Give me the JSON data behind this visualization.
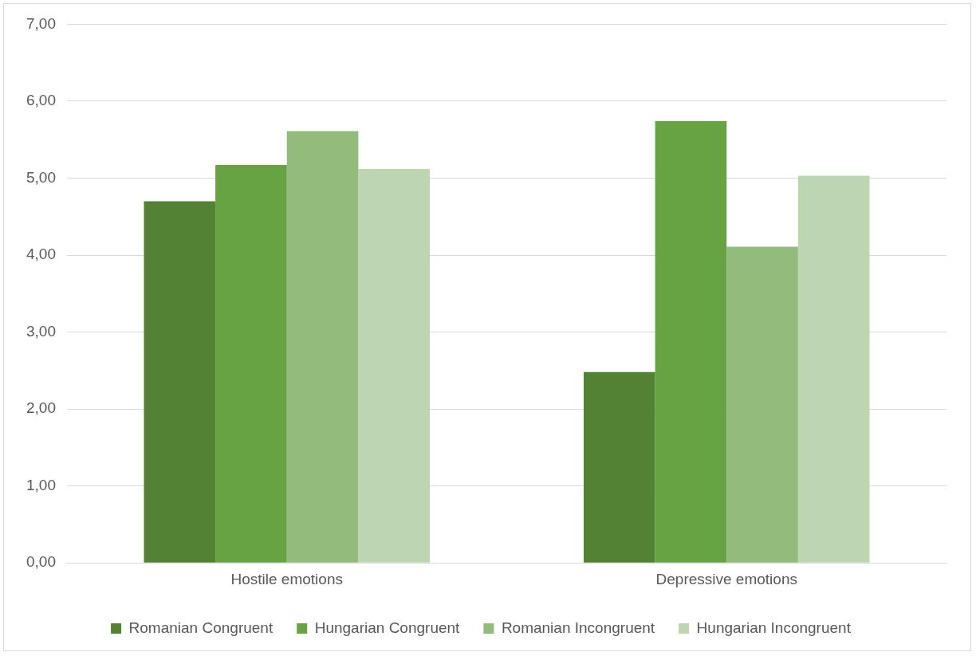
{
  "chart_data": {
    "type": "bar",
    "categories": [
      "Hostile emotions",
      "Depressive emotions"
    ],
    "series": [
      {
        "name": "Romanian Congruent",
        "color": "#548235",
        "values": [
          4.7,
          2.48
        ]
      },
      {
        "name": "Hungarian Congruent",
        "color": "#68a343",
        "values": [
          5.17,
          5.74
        ]
      },
      {
        "name": "Romanian Incongruent",
        "color": "#93bc7c",
        "values": [
          5.61,
          4.11
        ]
      },
      {
        "name": "Hungarian Incongruent",
        "color": "#bed5b2",
        "values": [
          5.12,
          5.03
        ]
      }
    ],
    "ylim": [
      0,
      7
    ],
    "yticks": [
      {
        "value": 0,
        "label": "0,00"
      },
      {
        "value": 1,
        "label": "1,00"
      },
      {
        "value": 2,
        "label": "2,00"
      },
      {
        "value": 3,
        "label": "3,00"
      },
      {
        "value": 4,
        "label": "4,00"
      },
      {
        "value": 5,
        "label": "5,00"
      },
      {
        "value": 6,
        "label": "6,00"
      },
      {
        "value": 7,
        "label": "7,00"
      }
    ],
    "grid": "y",
    "legend": "bottom"
  }
}
